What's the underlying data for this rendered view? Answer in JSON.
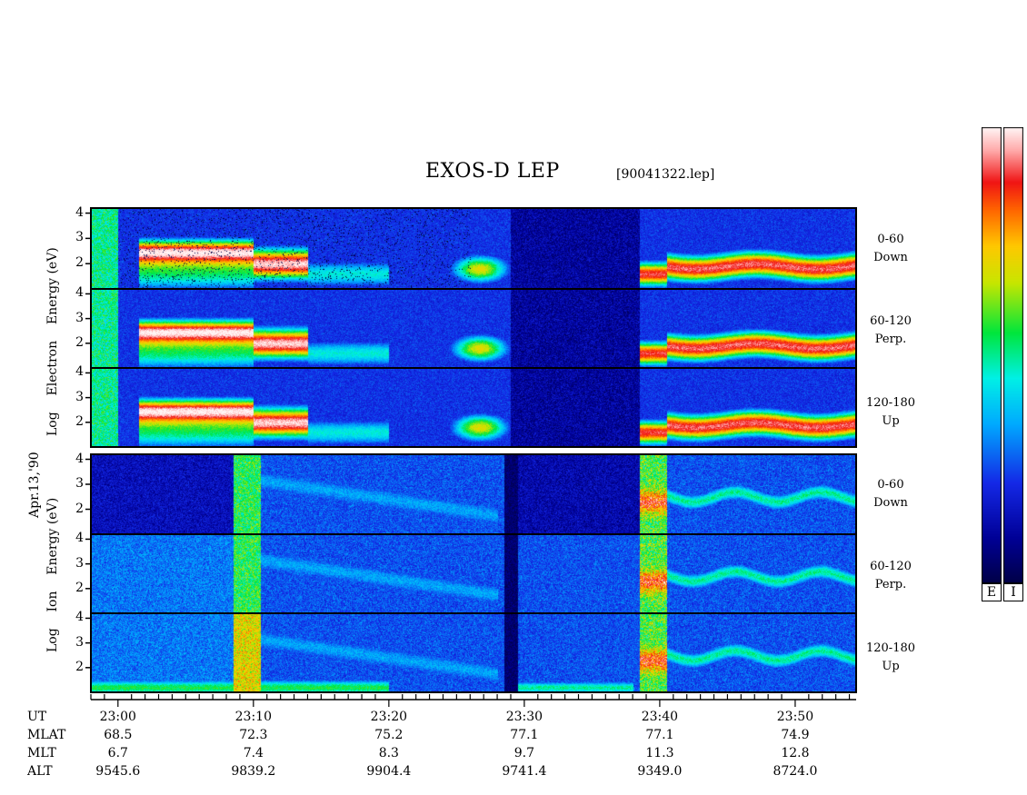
{
  "header": {
    "title": "EXOS-D LEP",
    "filename": "[90041322.lep]"
  },
  "date_label": "Apr.13,'90",
  "electron_label": [
    "Log",
    "Electron",
    "Energy",
    "(eV)"
  ],
  "ion_label": [
    "Log",
    "Ion",
    "Energy",
    "(eV)"
  ],
  "panels": [
    {
      "angle": "0-60",
      "dir": "Down"
    },
    {
      "angle": "60-120",
      "dir": "Perp."
    },
    {
      "angle": "120-180",
      "dir": "Up"
    },
    {
      "angle": "0-60",
      "dir": "Down"
    },
    {
      "angle": "60-120",
      "dir": "Perp."
    },
    {
      "angle": "120-180",
      "dir": "Up"
    }
  ],
  "colorbar_labels": [
    "E",
    "I"
  ],
  "chart_data": {
    "type": "heatmap",
    "title": "EXOS-D LEP",
    "ylabel_electron": "Log Electron Energy (eV)",
    "ylabel_ion": "Log Ion Energy (eV)",
    "y_ticks": [
      "4",
      "3",
      "2"
    ],
    "ylim": [
      1,
      4.2
    ],
    "x_ticks": [
      "23:00",
      "23:10",
      "23:20",
      "23:30",
      "23:40",
      "23:50"
    ],
    "x_minutes": [
      0,
      10,
      20,
      30,
      40,
      50
    ],
    "xlim_minutes": [
      -2,
      54.5
    ],
    "pitch_angle_bins": [
      "0-60",
      "60-120",
      "120-180"
    ],
    "species": [
      "Electron",
      "Ion"
    ],
    "ephemeris": {
      "labels": [
        "UT",
        "MLAT",
        "MLT",
        "ALT"
      ],
      "UT": [
        "23:00",
        "23:10",
        "23:20",
        "23:30",
        "23:40",
        "23:50"
      ],
      "MLAT": [
        "68.5",
        "72.3",
        "75.2",
        "77.1",
        "77.1",
        "74.9"
      ],
      "MLT": [
        "6.7",
        "7.4",
        "8.3",
        "9.7",
        "11.3",
        "12.8"
      ],
      "ALT": [
        "9545.6",
        "9839.2",
        "9904.4",
        "9741.4",
        "9349.0",
        "8724.0"
      ]
    }
  }
}
